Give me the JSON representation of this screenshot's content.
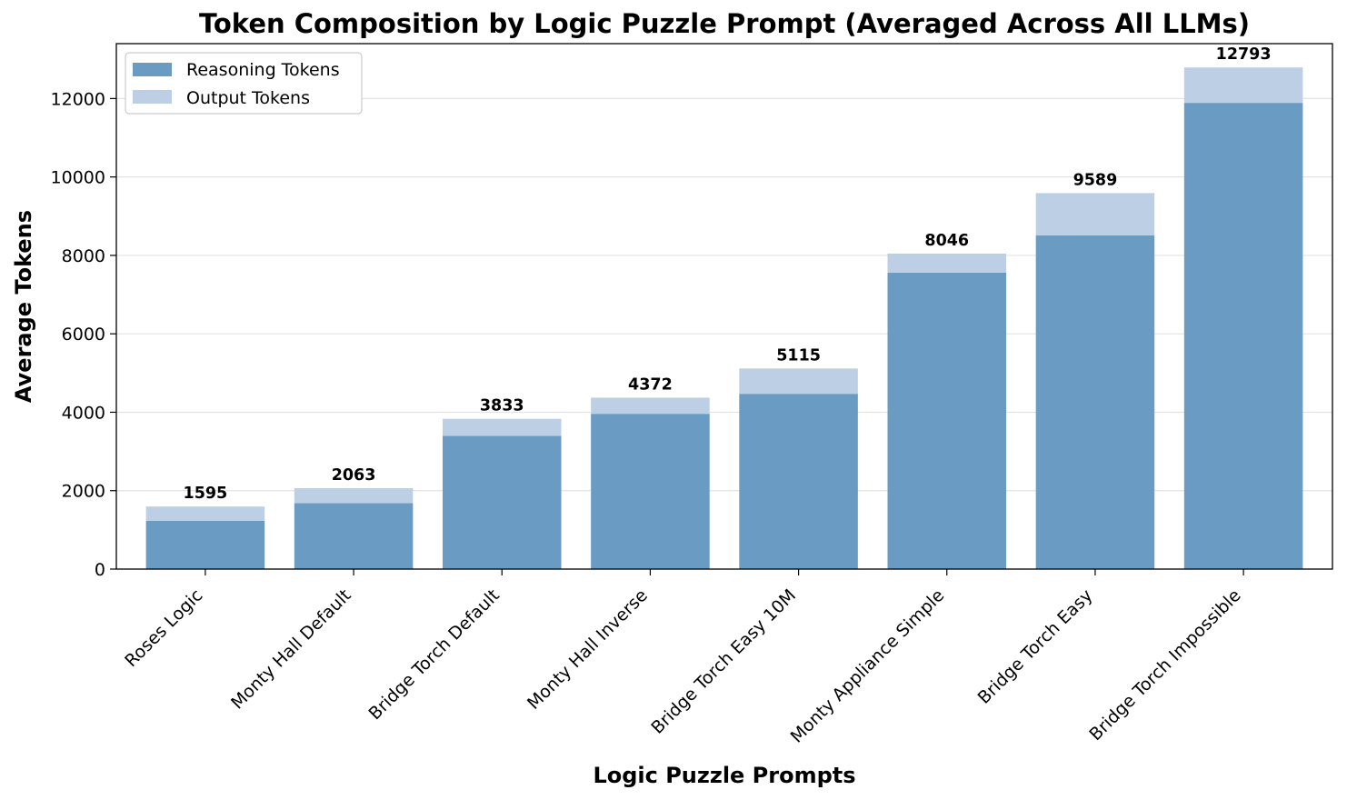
{
  "chart_data": {
    "type": "bar",
    "stacked": true,
    "title": "Token Composition by Logic Puzzle Prompt (Averaged Across All LLMs)",
    "xlabel": "Logic Puzzle Prompts",
    "ylabel": "Average Tokens",
    "categories": [
      "Roses Logic",
      "Monty Hall Default",
      "Bridge Torch Default",
      "Monty Hall Inverse",
      "Bridge Torch Easy 10M",
      "Monty Appliance Simple",
      "Bridge Torch Easy",
      "Bridge Torch Impossible"
    ],
    "series": [
      {
        "name": "Reasoning Tokens",
        "color": "#6a9bc3",
        "values": [
          1230,
          1680,
          3400,
          3960,
          4470,
          7560,
          8510,
          11890
        ]
      },
      {
        "name": "Output Tokens",
        "color": "#bccfe4",
        "values": [
          365,
          383,
          433,
          412,
          645,
          486,
          1079,
          903
        ]
      }
    ],
    "totals": [
      "1595",
      "2063",
      "3833",
      "4372",
      "5115",
      "8046",
      "9589",
      "12793"
    ],
    "ylim": [
      0,
      13400
    ],
    "yticks": [
      0,
      2000,
      4000,
      6000,
      8000,
      10000,
      12000
    ],
    "grid": "y",
    "legend_position": "top-left"
  }
}
